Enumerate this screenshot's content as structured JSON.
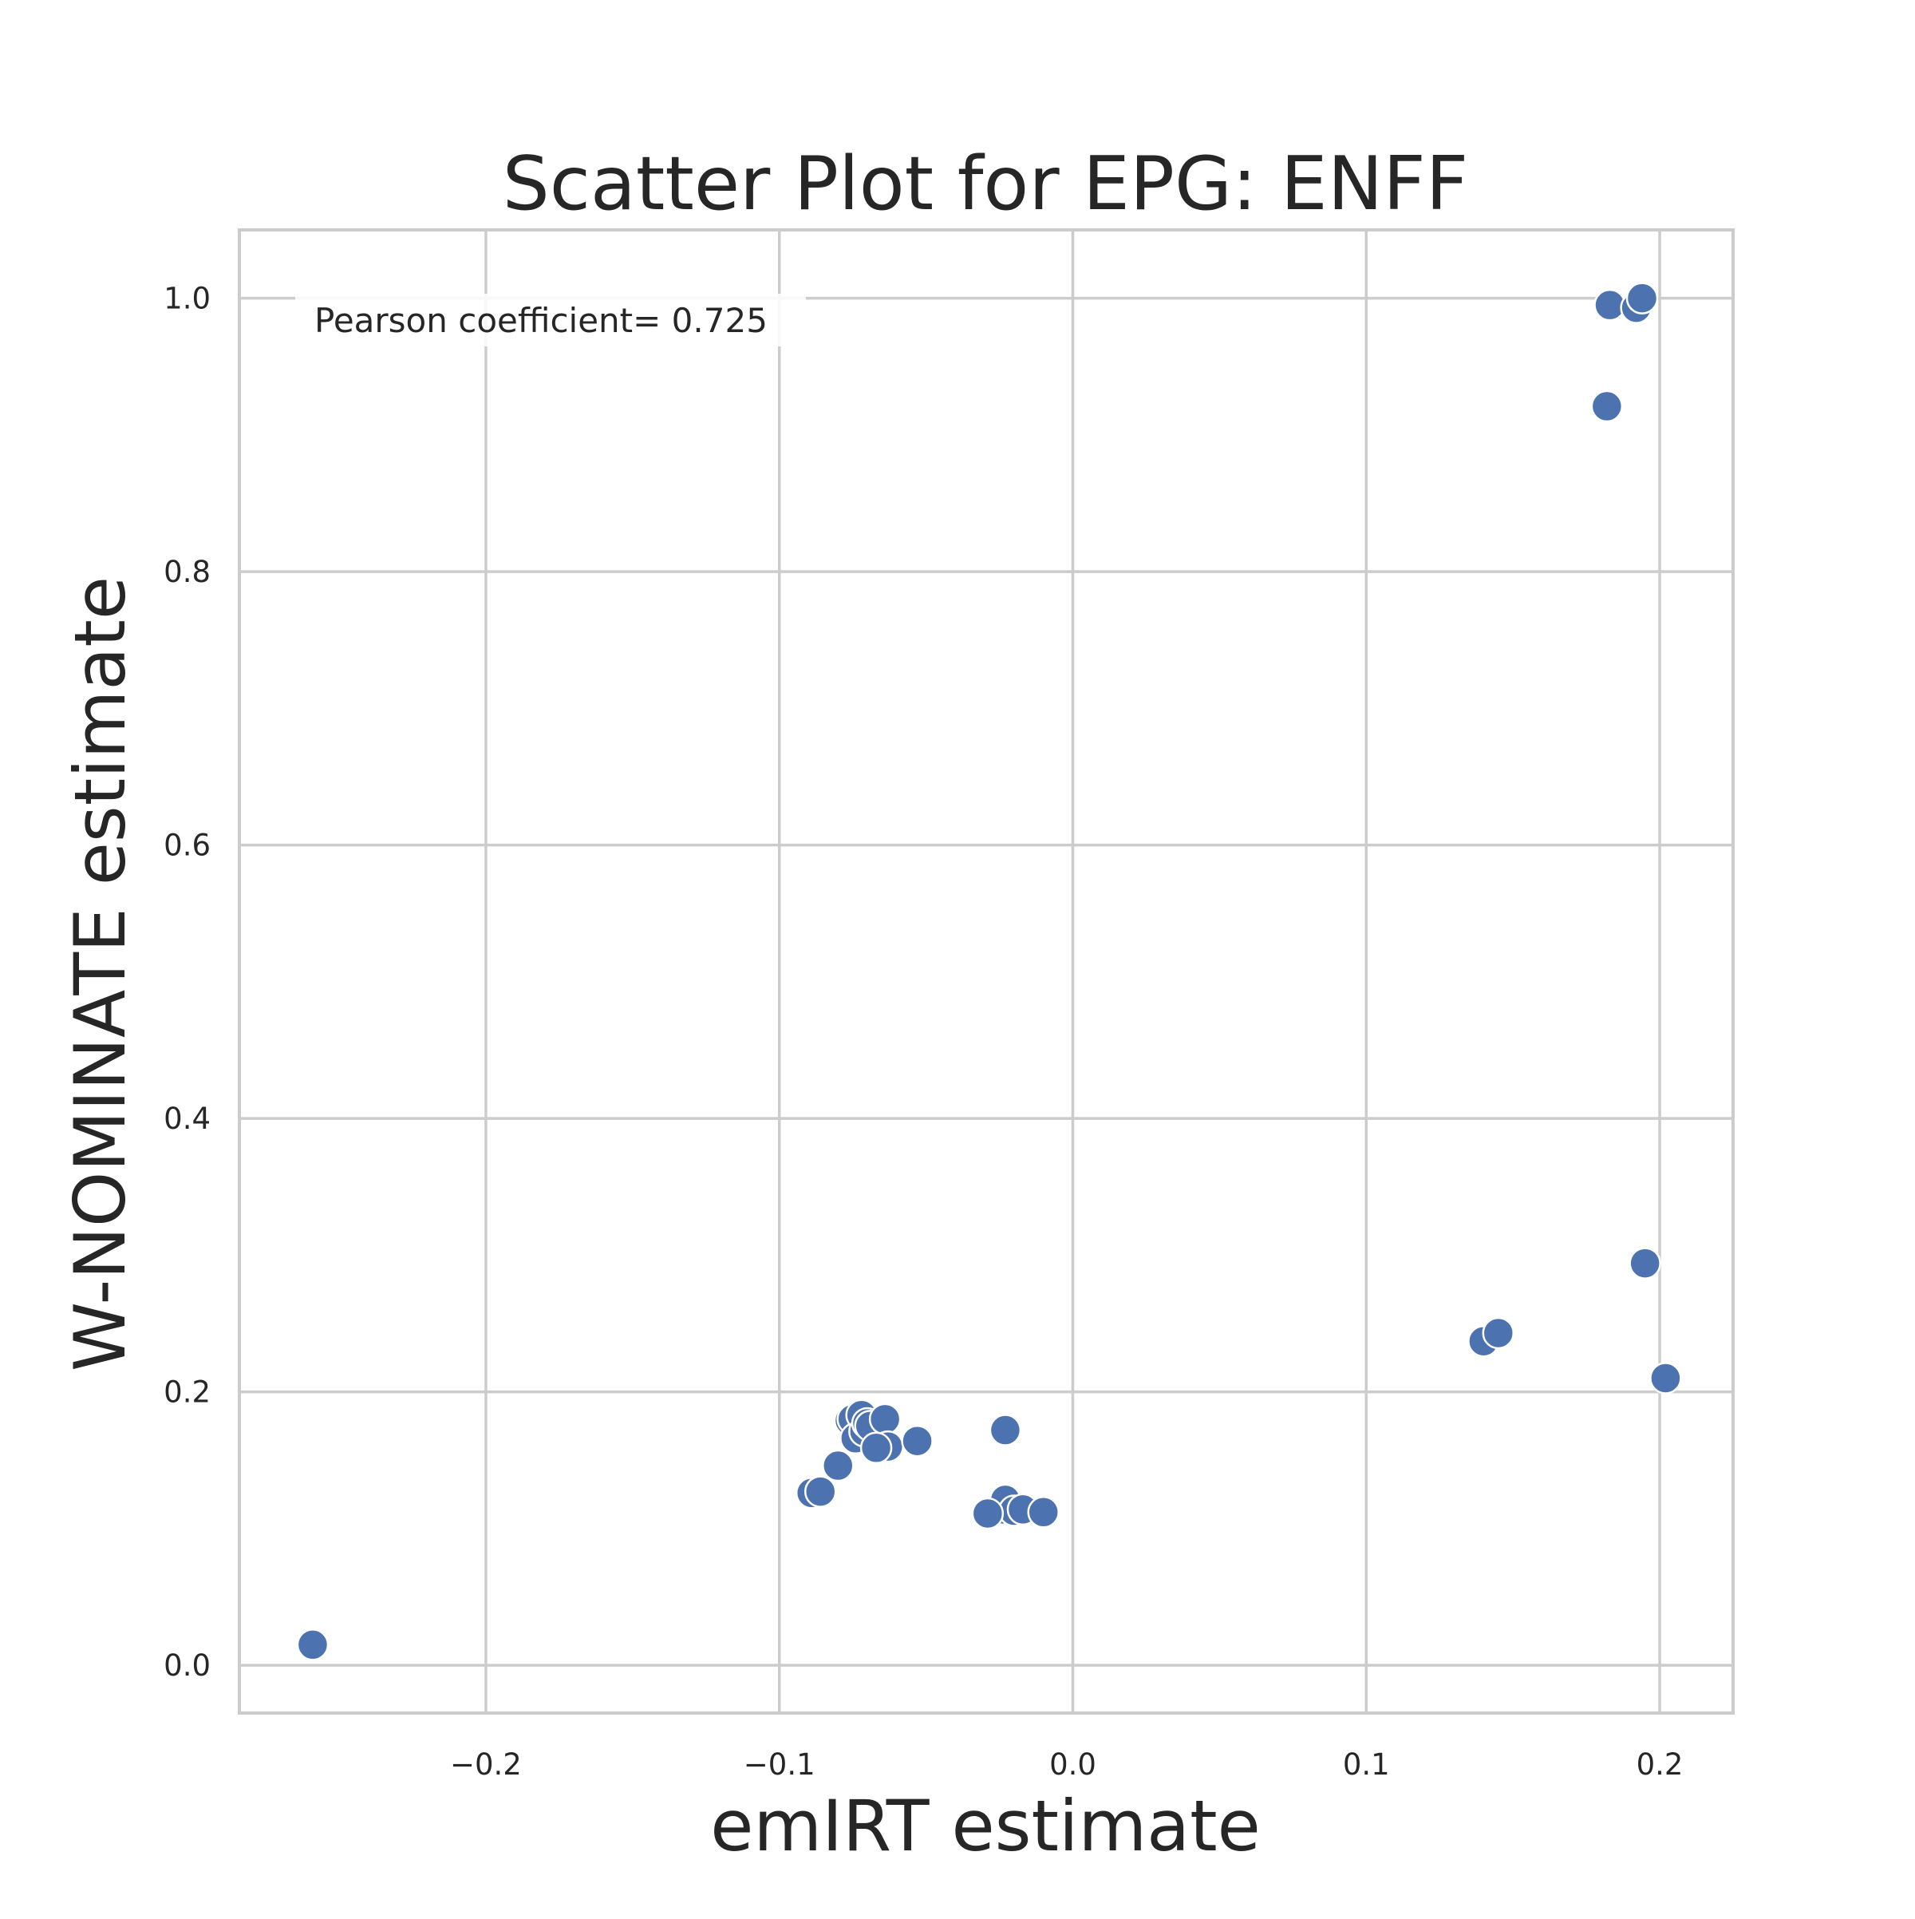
{
  "chart_data": {
    "type": "scatter",
    "title": "Scatter Plot for EPG: ENFF",
    "xlabel": "emIRT estimate",
    "ylabel": "W-NOMINATE estimate",
    "xlim": [
      -0.284,
      0.225
    ],
    "ylim": [
      -0.035,
      1.05
    ],
    "xticks": [
      -0.2,
      -0.1,
      0.0,
      0.1,
      0.2
    ],
    "xtick_labels": [
      "−0.2",
      "−0.1",
      "0.0",
      "0.1",
      "0.2"
    ],
    "yticks": [
      0.0,
      0.2,
      0.4,
      0.6,
      0.8,
      1.0
    ],
    "ytick_labels": [
      "0.0",
      "0.2",
      "0.4",
      "0.6",
      "0.8",
      "1.0"
    ],
    "grid": true,
    "annotation": "Pearson coefficient= 0.725",
    "marker_color": "#4c72b0",
    "marker_edge_color": "#ffffff",
    "grid_color": "#cccccc",
    "points": [
      {
        "x": -0.259,
        "y": 0.015
      },
      {
        "x": -0.089,
        "y": 0.126
      },
      {
        "x": -0.086,
        "y": 0.127
      },
      {
        "x": -0.08,
        "y": 0.146
      },
      {
        "x": -0.076,
        "y": 0.179
      },
      {
        "x": -0.075,
        "y": 0.18
      },
      {
        "x": -0.074,
        "y": 0.166
      },
      {
        "x": -0.072,
        "y": 0.183
      },
      {
        "x": -0.071,
        "y": 0.171
      },
      {
        "x": -0.07,
        "y": 0.177
      },
      {
        "x": -0.069,
        "y": 0.175
      },
      {
        "x": -0.064,
        "y": 0.18
      },
      {
        "x": -0.063,
        "y": 0.16
      },
      {
        "x": -0.067,
        "y": 0.159
      },
      {
        "x": -0.053,
        "y": 0.164
      },
      {
        "x": -0.023,
        "y": 0.172
      },
      {
        "x": -0.024,
        "y": 0.114
      },
      {
        "x": -0.023,
        "y": 0.121
      },
      {
        "x": -0.02,
        "y": 0.113
      },
      {
        "x": -0.017,
        "y": 0.114
      },
      {
        "x": -0.01,
        "y": 0.112
      },
      {
        "x": -0.029,
        "y": 0.111
      },
      {
        "x": 0.14,
        "y": 0.237
      },
      {
        "x": 0.145,
        "y": 0.243
      },
      {
        "x": 0.195,
        "y": 0.294
      },
      {
        "x": 0.202,
        "y": 0.21
      },
      {
        "x": 0.182,
        "y": 0.921
      },
      {
        "x": 0.183,
        "y": 0.995
      },
      {
        "x": 0.192,
        "y": 0.993
      },
      {
        "x": 0.194,
        "y": 1.0
      }
    ]
  }
}
